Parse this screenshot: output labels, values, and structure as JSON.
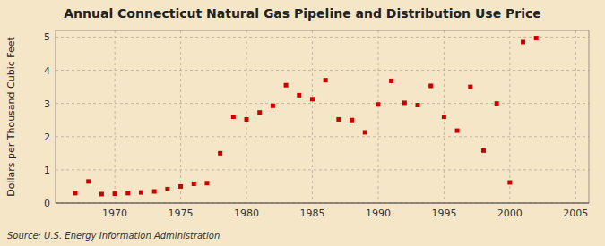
{
  "chart_data": {
    "type": "scatter",
    "title": "Annual Connecticut Natural Gas Pipeline and Distribution Use Price",
    "ylabel": "Dollars per Thousand Cubic Feet",
    "source": "Source: U.S. Energy Information Administration",
    "x": [
      1967,
      1968,
      1969,
      1970,
      1971,
      1972,
      1973,
      1974,
      1975,
      1976,
      1977,
      1978,
      1979,
      1980,
      1981,
      1982,
      1983,
      1984,
      1985,
      1986,
      1987,
      1988,
      1989,
      1990,
      1991,
      1992,
      1993,
      1994,
      1995,
      1996,
      1997,
      1998,
      1999,
      2000,
      2001,
      2002
    ],
    "values": [
      0.3,
      0.65,
      0.27,
      0.28,
      0.3,
      0.32,
      0.35,
      0.42,
      0.5,
      0.58,
      0.6,
      1.5,
      2.6,
      2.52,
      2.73,
      2.93,
      3.55,
      3.25,
      3.13,
      3.7,
      2.52,
      2.5,
      2.13,
      2.97,
      3.68,
      3.02,
      2.95,
      3.53,
      2.6,
      2.18,
      3.5,
      1.58,
      3.0,
      0.62,
      4.85,
      4.97
    ],
    "color": "#cc0000",
    "marker": "square",
    "xlim": [
      1965.5,
      2006
    ],
    "ylim": [
      0,
      5.2
    ],
    "xticks": [
      1970,
      1975,
      1980,
      1985,
      1990,
      1995,
      2000,
      2005
    ],
    "yticks": [
      0,
      1,
      2,
      3,
      4,
      5
    ],
    "grid": true
  }
}
